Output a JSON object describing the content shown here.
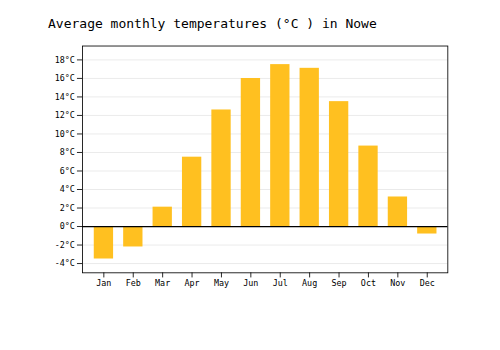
{
  "chart_data": {
    "type": "bar",
    "title": "Average monthly temperatures (°C ) in Nowe",
    "categories": [
      "Jan",
      "Feb",
      "Mar",
      "Apr",
      "May",
      "Jun",
      "Jul",
      "Aug",
      "Sep",
      "Oct",
      "Nov",
      "Dec"
    ],
    "values": [
      -3.5,
      -2.2,
      2.1,
      7.5,
      12.6,
      16.0,
      17.5,
      17.1,
      13.5,
      8.7,
      3.2,
      -0.8
    ],
    "color": "#FFC020",
    "ylim": [
      -5,
      19.5
    ],
    "yticks": [
      {
        "value": -4,
        "label": "-4°C"
      },
      {
        "value": -2,
        "label": "-2°C"
      },
      {
        "value": 0,
        "label": "0°C"
      },
      {
        "value": 2,
        "label": "2°C"
      },
      {
        "value": 4,
        "label": "4°C"
      },
      {
        "value": 6,
        "label": "6°C"
      },
      {
        "value": 8,
        "label": "8°C"
      },
      {
        "value": 10,
        "label": "10°C"
      },
      {
        "value": 12,
        "label": "12°C"
      },
      {
        "value": 14,
        "label": "14°C"
      },
      {
        "value": 16,
        "label": "16°C"
      },
      {
        "value": 18,
        "label": "18°C"
      }
    ],
    "grid": true
  }
}
